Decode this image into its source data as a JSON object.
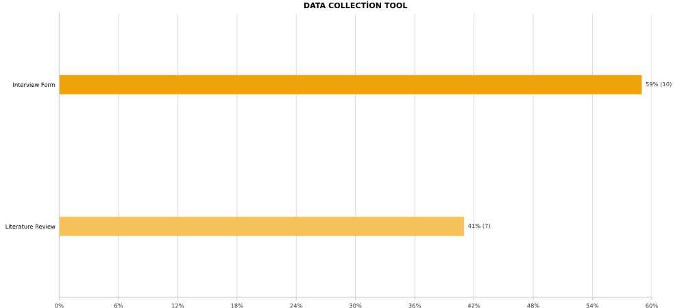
{
  "chart_data": {
    "type": "bar",
    "title": "DATA COLLECTİON TOOL",
    "orientation": "horizontal",
    "categories": [
      "Interview Form",
      "Literature Review"
    ],
    "values": [
      59,
      41
    ],
    "colors": [
      "#f0a30a",
      "#f6c15a"
    ],
    "value_labels": [
      "59% (10)",
      "41% (7)"
    ],
    "xlim": [
      0,
      60
    ],
    "xticks": [
      {
        "value": 0,
        "label": "0%"
      },
      {
        "value": 6,
        "label": "6%"
      },
      {
        "value": 12,
        "label": "12%"
      },
      {
        "value": 18,
        "label": "18%"
      },
      {
        "value": 24,
        "label": "24%"
      },
      {
        "value": 30,
        "label": "30%"
      },
      {
        "value": 36,
        "label": "36%"
      },
      {
        "value": 42,
        "label": "42%"
      },
      {
        "value": 48,
        "label": "48%"
      },
      {
        "value": 54,
        "label": "54%"
      },
      {
        "value": 60,
        "label": "60%"
      }
    ],
    "grid": "x"
  }
}
